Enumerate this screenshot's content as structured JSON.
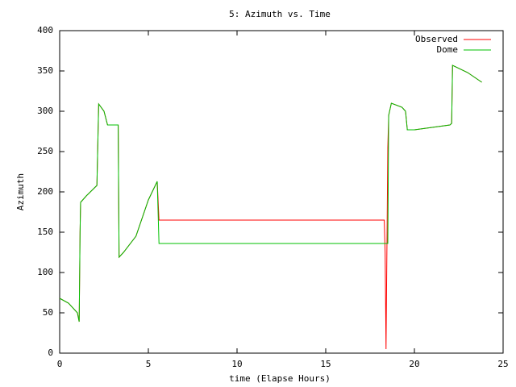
{
  "chart_data": {
    "type": "line",
    "title": "5: Azimuth vs. Time",
    "x_label": "time (Elapse Hours)",
    "y_label": "Azimuth",
    "xlim": [
      0,
      25
    ],
    "xticks": [
      0,
      5,
      10,
      15,
      20,
      25
    ],
    "ylim": [
      0,
      400
    ],
    "yticks": [
      0,
      50,
      100,
      150,
      200,
      250,
      300,
      350,
      400
    ],
    "legend": "upper right",
    "series": [
      {
        "name": "Observed",
        "color": "#ff0000",
        "x": [
          0,
          0.5,
          1.0,
          1.1,
          1.15,
          1.18,
          1.5,
          2.1,
          2.2,
          2.5,
          2.7,
          3.3,
          3.35,
          3.6,
          4.3,
          5.0,
          5.5,
          5.6,
          18.3,
          18.35,
          18.4,
          18.5,
          18.55,
          18.7,
          19.3,
          19.5,
          19.6,
          20,
          21,
          22,
          22.1,
          22.15,
          23,
          23.8
        ],
        "values": [
          68,
          62,
          50,
          39,
          150,
          187,
          195,
          208,
          309,
          300,
          283,
          283,
          119,
          125,
          145,
          190,
          213,
          165,
          165,
          125,
          5,
          255,
          295,
          310,
          305,
          300,
          277,
          277,
          280,
          283,
          285,
          357,
          348,
          336
        ]
      },
      {
        "name": "Dome",
        "color": "#00c000",
        "x": [
          0,
          0.5,
          1.0,
          1.1,
          1.15,
          1.18,
          1.5,
          2.1,
          2.2,
          2.5,
          2.7,
          3.3,
          3.35,
          3.6,
          4.3,
          5.0,
          5.5,
          5.6,
          18.5,
          18.55,
          18.7,
          19.3,
          19.5,
          19.6,
          20,
          21,
          22,
          22.1,
          22.15,
          23,
          23.8
        ],
        "values": [
          68,
          62,
          50,
          39,
          150,
          187,
          195,
          208,
          309,
          300,
          283,
          283,
          119,
          125,
          145,
          190,
          213,
          136,
          136,
          295,
          310,
          305,
          300,
          277,
          277,
          280,
          283,
          285,
          357,
          348,
          336
        ]
      }
    ]
  }
}
